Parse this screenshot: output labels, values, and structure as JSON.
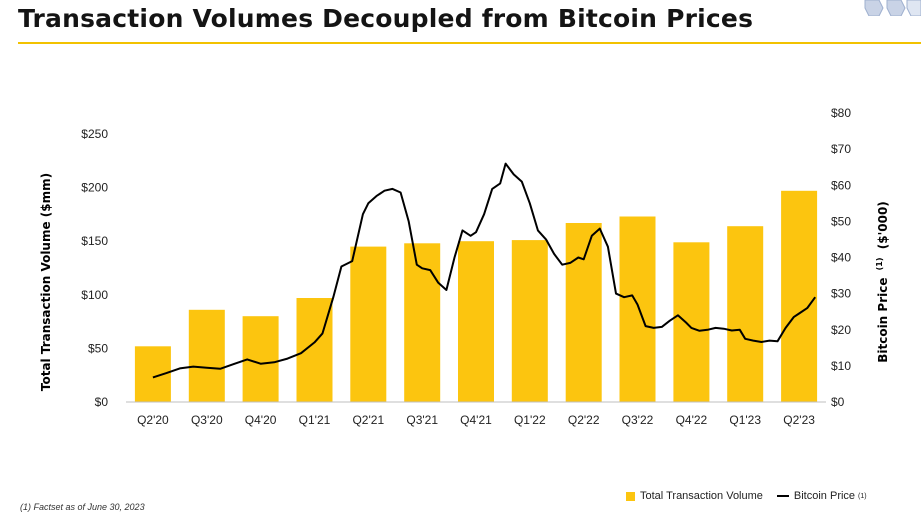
{
  "header": {
    "title": "Transaction Volumes Decoupled from Bitcoin Prices"
  },
  "footnote": "(1)  Factset as of June 30, 2023",
  "colors": {
    "bar": "#fcc50f",
    "line": "#000000",
    "title_rule": "#f2c200"
  },
  "chart_data": {
    "type": "bar",
    "categories": [
      "Q2'20",
      "Q3'20",
      "Q4'20",
      "Q1'21",
      "Q2'21",
      "Q3'21",
      "Q4'21",
      "Q1'22",
      "Q2'22",
      "Q3'22",
      "Q4'22",
      "Q1'23",
      "Q2'23"
    ],
    "ylabel": "Total Transaction Volume ($mm)",
    "y2label": "Bitcoin Price (1) ($'000)",
    "y2label_main": "Bitcoin Price",
    "y2label_sup": "(1)",
    "y2label_tail": "($'000)",
    "ylim": [
      0,
      250
    ],
    "y_ticks": [
      "$0",
      "$50",
      "$100",
      "$150",
      "$200",
      "$250"
    ],
    "y2lim": [
      0,
      80
    ],
    "y2_ticks": [
      "$0",
      "$10",
      "$20",
      "$30",
      "$40",
      "$50",
      "$60",
      "$70",
      "$80"
    ],
    "series": [
      {
        "name": "Total Transaction Volume",
        "type": "bar",
        "axis": "left",
        "values": [
          52,
          86,
          80,
          97,
          145,
          148,
          150,
          151,
          167,
          173,
          149,
          164,
          197
        ]
      },
      {
        "name": "Bitcoin Price",
        "type": "line",
        "axis": "right",
        "x": [
          0,
          0.25,
          0.5,
          0.75,
          1.0,
          1.25,
          1.5,
          1.75,
          2.0,
          2.25,
          2.5,
          2.75,
          3.0,
          3.15,
          3.35,
          3.5,
          3.7,
          3.9,
          4.0,
          4.15,
          4.3,
          4.45,
          4.6,
          4.75,
          4.9,
          5.0,
          5.15,
          5.3,
          5.45,
          5.6,
          5.75,
          5.9,
          6.0,
          6.15,
          6.3,
          6.45,
          6.55,
          6.7,
          6.85,
          7.0,
          7.15,
          7.3,
          7.45,
          7.6,
          7.75,
          7.9,
          8.0,
          8.15,
          8.3,
          8.45,
          8.6,
          8.75,
          8.9,
          9.0,
          9.15,
          9.3,
          9.45,
          9.6,
          9.75,
          9.9,
          10.0,
          10.15,
          10.3,
          10.45,
          10.6,
          10.75,
          10.9,
          11.0,
          11.15,
          11.3,
          11.45,
          11.6,
          11.75,
          11.9,
          12.0,
          12.15,
          12.3
        ],
        "values": [
          6.8,
          8.0,
          9.3,
          9.8,
          9.5,
          9.2,
          10.5,
          11.8,
          10.6,
          11.0,
          12.0,
          13.5,
          16.5,
          19.0,
          29.0,
          37.5,
          39.0,
          52.0,
          55.0,
          57.0,
          58.5,
          59.0,
          58.0,
          50.0,
          38.0,
          37.0,
          36.5,
          33.0,
          31.0,
          40.0,
          47.5,
          46.0,
          47.0,
          52.0,
          59.0,
          60.5,
          66.0,
          63.0,
          61.0,
          55.0,
          47.5,
          45.0,
          41.0,
          38.0,
          38.5,
          40.0,
          39.5,
          46.0,
          48.0,
          43.0,
          30.0,
          29.0,
          29.5,
          27.0,
          21.0,
          20.5,
          20.8,
          22.5,
          24.0,
          22.0,
          20.5,
          19.7,
          20.0,
          20.5,
          20.3,
          19.8,
          20.0,
          17.5,
          17.0,
          16.6,
          17.0,
          16.8,
          20.5,
          23.5,
          24.5,
          26.0,
          29.0
        ]
      }
    ],
    "legend": {
      "position": "bottom-right",
      "entries": [
        "Total Transaction Volume",
        "Bitcoin Price"
      ],
      "line_sup": "(1)"
    },
    "grid": false
  }
}
